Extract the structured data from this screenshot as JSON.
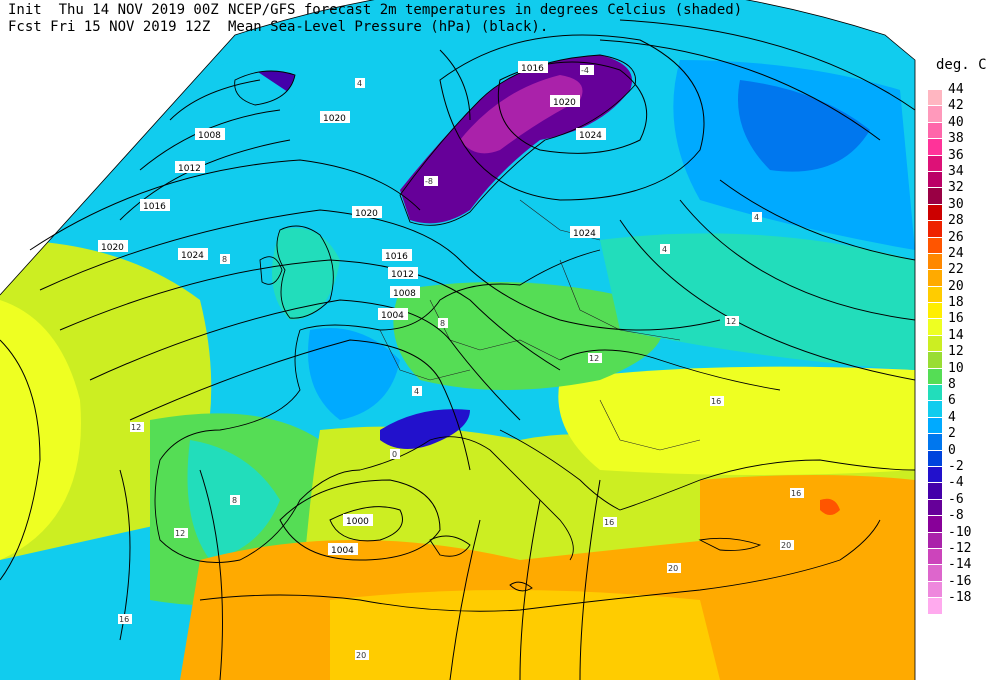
{
  "header": {
    "line1_left": "Init  Thu 14 NOV 2019 00Z",
    "line2_left": "Fcst Fri 15 NOV 2019 12Z",
    "line1_right": "NCEP/GFS forecast 2m temperatures in degrees Celcius (shaded)",
    "line2_right": "Mean Sea-Level Pressure (hPa) (black)."
  },
  "legend": {
    "title": "deg. C",
    "entries": [
      {
        "label": "44",
        "color": "#ffb6c1"
      },
      {
        "label": "42",
        "color": "#ff99bb"
      },
      {
        "label": "40",
        "color": "#ff66aa"
      },
      {
        "label": "38",
        "color": "#ff3399"
      },
      {
        "label": "36",
        "color": "#dd1177"
      },
      {
        "label": "34",
        "color": "#bb0066"
      },
      {
        "label": "32",
        "color": "#990044"
      },
      {
        "label": "30",
        "color": "#cc0000"
      },
      {
        "label": "28",
        "color": "#ee2200"
      },
      {
        "label": "26",
        "color": "#ff5500"
      },
      {
        "label": "24",
        "color": "#ff8800"
      },
      {
        "label": "22",
        "color": "#ffaa00"
      },
      {
        "label": "20",
        "color": "#ffcc00"
      },
      {
        "label": "18",
        "color": "#ffee00"
      },
      {
        "label": "16",
        "color": "#eeff22"
      },
      {
        "label": "14",
        "color": "#ccee22"
      },
      {
        "label": "12",
        "color": "#99dd33"
      },
      {
        "label": "10",
        "color": "#55dd55"
      },
      {
        "label": "8",
        "color": "#22ddbb"
      },
      {
        "label": "6",
        "color": "#11ccee"
      },
      {
        "label": "4",
        "color": "#00aaff"
      },
      {
        "label": "2",
        "color": "#0077ee"
      },
      {
        "label": "0",
        "color": "#0044dd"
      },
      {
        "label": "-2",
        "color": "#2211cc"
      },
      {
        "label": "-4",
        "color": "#4400aa"
      },
      {
        "label": "-6",
        "color": "#660099"
      },
      {
        "label": "-8",
        "color": "#880099"
      },
      {
        "label": "-10",
        "color": "#aa22aa"
      },
      {
        "label": "-12",
        "color": "#cc44bb"
      },
      {
        "label": "-14",
        "color": "#dd66cc"
      },
      {
        "label": "-16",
        "color": "#ee88dd"
      },
      {
        "label": "-18",
        "color": "#ffaaee"
      }
    ]
  },
  "isobar_labels": [
    "1000",
    "1004",
    "1008",
    "1012",
    "1016",
    "1020",
    "1024"
  ],
  "isobars": [
    {
      "label": "1000",
      "color": "#000000"
    },
    {
      "label": "1004",
      "color": "#000000"
    },
    {
      "label": "1008",
      "color": "#000000"
    },
    {
      "label": "1012",
      "color": "#000000"
    },
    {
      "label": "1016",
      "color": "#000000"
    },
    {
      "label": "1020",
      "color": "#000000"
    },
    {
      "label": "1024",
      "color": "#000000"
    }
  ],
  "high_pressure_labels": [
    "1016",
    "1020",
    "1024"
  ],
  "temp_labels": [
    "4",
    "8",
    "12",
    "16",
    "20",
    "-8",
    "-4",
    "0"
  ]
}
